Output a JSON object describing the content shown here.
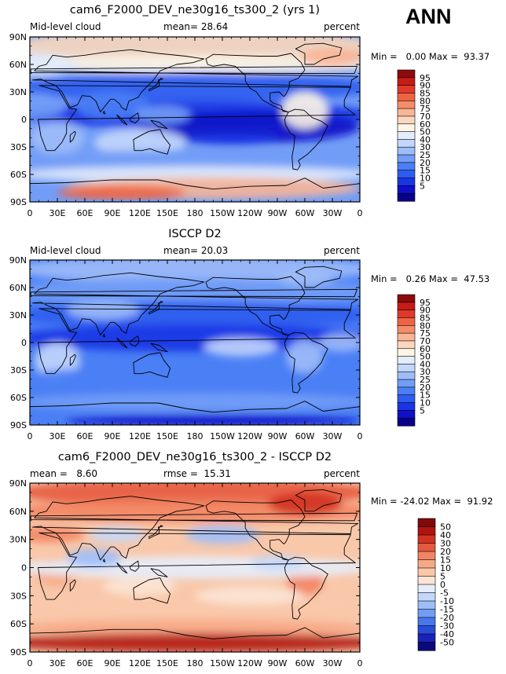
{
  "season": "ANN",
  "chart_data": [
    {
      "type": "heatmap",
      "title": "cam6_F2000_DEV_ne30g16_ts300_2 (yrs 1)",
      "left_label": "Mid-level cloud",
      "center_label": "mean=  28.64",
      "right_label": "percent",
      "minmax_label": "Min =   0.00 Max =  93.37",
      "min": 0.0,
      "max": 93.37,
      "mean": 28.64,
      "lat_ticks": [
        "90N",
        "60N",
        "30N",
        "0",
        "30S",
        "60S",
        "90S"
      ],
      "lon_ticks": [
        "0",
        "30E",
        "60E",
        "90E",
        "120E",
        "150E",
        "180",
        "150W",
        "120W",
        "90W",
        "60W",
        "30W",
        "0"
      ],
      "colorbar_labels": [
        "95",
        "90",
        "85",
        "80",
        "75",
        "70",
        "60",
        "50",
        "40",
        "30",
        "25",
        "20",
        "15",
        "10",
        "5"
      ],
      "colors": [
        "#09008a",
        "#1010c8",
        "#1a35e6",
        "#2e5cf0",
        "#4a7ff5",
        "#729df7",
        "#9ebcf8",
        "#c3d6fb",
        "#e2ecfc",
        "#fdf5e6",
        "#fbd8bd",
        "#f9b595",
        "#f58c6a",
        "#ee6443",
        "#e0392a",
        "#c51c18",
        "#8e0b0b"
      ]
    },
    {
      "type": "heatmap",
      "title": "ISCCP D2",
      "left_label": "Mid-level cloud",
      "center_label": "mean=  20.03",
      "right_label": "percent",
      "minmax_label": "Min =   0.26 Max =  47.53",
      "min": 0.26,
      "max": 47.53,
      "mean": 20.03,
      "lat_ticks": [
        "90N",
        "60N",
        "30N",
        "0",
        "30S",
        "60S",
        "90S"
      ],
      "lon_ticks": [
        "0",
        "30E",
        "60E",
        "90E",
        "120E",
        "150E",
        "180",
        "150W",
        "120W",
        "90W",
        "60W",
        "30W",
        "0"
      ],
      "colorbar_labels": [
        "95",
        "90",
        "85",
        "80",
        "75",
        "70",
        "60",
        "50",
        "40",
        "30",
        "25",
        "20",
        "15",
        "10",
        "5"
      ],
      "colors": [
        "#09008a",
        "#1010c8",
        "#1a35e6",
        "#2e5cf0",
        "#4a7ff5",
        "#729df7",
        "#9ebcf8",
        "#c3d6fb",
        "#e2ecfc",
        "#fdf5e6",
        "#fbd8bd",
        "#f9b595",
        "#f58c6a",
        "#ee6443",
        "#e0392a",
        "#c51c18",
        "#8e0b0b"
      ]
    },
    {
      "type": "heatmap",
      "title": "cam6_F2000_DEV_ne30g16_ts300_2 - ISCCP D2",
      "left_label": "mean =   8.60",
      "center_label": "rmse =  15.31",
      "right_label": "percent",
      "minmax_label": "Min = -24.02 Max =  91.92",
      "min": -24.02,
      "max": 91.92,
      "mean": 8.6,
      "rmse": 15.31,
      "lat_ticks": [
        "90N",
        "60N",
        "30N",
        "0",
        "30S",
        "60S",
        "90S"
      ],
      "lon_ticks": [
        "0",
        "30E",
        "60E",
        "90E",
        "120E",
        "150E",
        "180",
        "150W",
        "120W",
        "90W",
        "60W",
        "30W",
        "0"
      ],
      "colorbar_labels": [
        "50",
        "40",
        "30",
        "20",
        "15",
        "10",
        "5",
        "0",
        "-5",
        "-10",
        "-15",
        "-20",
        "-30",
        "-40",
        "-50"
      ],
      "colors": [
        "#0a0a7a",
        "#1a22b8",
        "#2a4ad8",
        "#4a76ec",
        "#729df5",
        "#9ebef8",
        "#c4d8fb",
        "#e6eefc",
        "#fbe4d4",
        "#f9c8aa",
        "#f7a986",
        "#f28463",
        "#e55a3f",
        "#d2321f",
        "#b01410",
        "#800a0a"
      ]
    }
  ]
}
